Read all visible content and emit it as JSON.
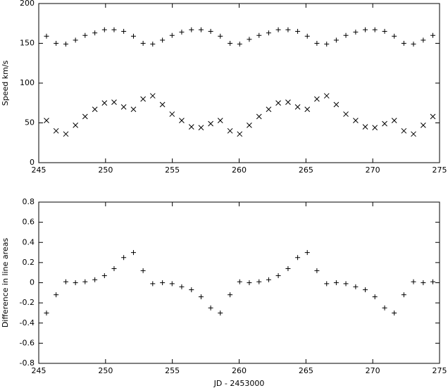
{
  "chart_data": [
    {
      "type": "scatter",
      "ylabel": "Speed km/s",
      "xlim": [
        245,
        275
      ],
      "xticks": [
        245,
        250,
        255,
        260,
        265,
        270,
        275
      ],
      "ylim": [
        0,
        200
      ],
      "yticks": [
        0,
        50,
        100,
        150,
        200
      ],
      "x": [
        245.58,
        246.3,
        247.03,
        247.75,
        248.47,
        249.2,
        249.92,
        250.64,
        251.36,
        252.09,
        252.81,
        253.53,
        254.26,
        254.98,
        255.7,
        256.43,
        257.15,
        257.87,
        258.59,
        259.32,
        260.04,
        260.76,
        261.49,
        262.21,
        262.93,
        263.66,
        264.38,
        265.1,
        265.82,
        266.55,
        267.27,
        267.99,
        268.72,
        269.44,
        270.16,
        270.89,
        271.61,
        272.33,
        273.05,
        273.78,
        274.5
      ],
      "series": [
        {
          "marker": "+",
          "color": "#000000",
          "values": [
            159,
            150,
            149,
            154,
            160,
            163,
            167,
            167,
            165,
            159,
            150,
            149,
            154,
            160,
            164,
            167,
            167,
            165,
            159,
            150,
            149,
            155,
            160,
            163,
            167,
            167,
            165,
            159,
            150,
            149,
            154,
            160,
            164,
            167,
            167,
            165,
            159,
            150,
            149,
            154,
            160
          ]
        },
        {
          "marker": "x",
          "color": "#000000",
          "values": [
            53,
            40,
            36,
            47,
            58,
            67,
            75,
            76,
            70,
            67,
            80,
            84,
            73,
            61,
            53,
            45,
            44,
            49,
            53,
            40,
            36,
            47,
            58,
            67,
            75,
            76,
            70,
            67,
            80,
            84,
            73,
            61,
            53,
            45,
            44,
            49,
            53,
            40,
            36,
            47,
            58
          ]
        }
      ]
    },
    {
      "type": "scatter",
      "xlabel": "JD - 2453000",
      "ylabel": "Difference in line areas",
      "xlim": [
        245,
        275
      ],
      "xticks": [
        245,
        250,
        255,
        260,
        265,
        270,
        275
      ],
      "ylim": [
        -0.8,
        0.8
      ],
      "yticks": [
        -0.8,
        -0.6,
        -0.4,
        -0.2,
        0,
        0.2,
        0.4,
        0.6,
        0.8
      ],
      "x": [
        245.58,
        246.3,
        247.03,
        247.75,
        248.47,
        249.2,
        249.92,
        250.64,
        251.36,
        252.09,
        252.81,
        253.53,
        254.26,
        254.98,
        255.7,
        256.43,
        257.15,
        257.87,
        258.59,
        259.32,
        260.04,
        260.76,
        261.49,
        262.21,
        262.93,
        263.66,
        264.38,
        265.1,
        265.82,
        266.55,
        267.27,
        267.99,
        268.72,
        269.44,
        270.16,
        270.89,
        271.61,
        272.33,
        273.05,
        273.78,
        274.5
      ],
      "series": [
        {
          "marker": "+",
          "color": "#000000",
          "values": [
            -0.3,
            -0.12,
            0.01,
            0,
            0.01,
            0.03,
            0.07,
            0.14,
            0.25,
            0.3,
            0.12,
            -0.01,
            0,
            -0.01,
            -0.04,
            -0.07,
            -0.14,
            -0.25,
            -0.3,
            -0.12,
            0.01,
            0,
            0.01,
            0.03,
            0.07,
            0.14,
            0.25,
            0.3,
            0.12,
            -0.01,
            0,
            -0.01,
            -0.04,
            -0.07,
            -0.14,
            -0.25,
            -0.3,
            -0.12,
            0.01,
            0,
            0.01
          ]
        }
      ]
    }
  ]
}
